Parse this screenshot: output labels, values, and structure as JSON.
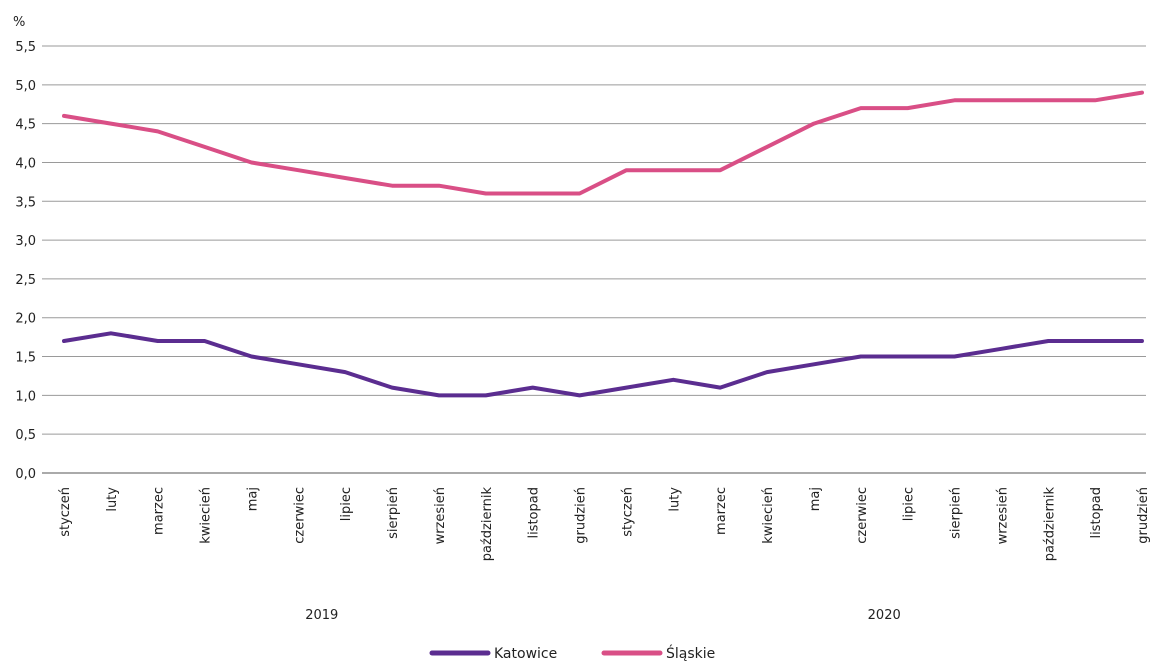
{
  "chart_data": {
    "type": "line",
    "ylabel": "%",
    "ylim": [
      0,
      5.5
    ],
    "yticks": [
      0.0,
      0.5,
      1.0,
      1.5,
      2.0,
      2.5,
      3.0,
      3.5,
      4.0,
      4.5,
      5.0,
      5.5
    ],
    "ytick_labels": [
      "0,0",
      "0,5",
      "1,0",
      "1,5",
      "2,0",
      "2,5",
      "3,0",
      "3,5",
      "4,0",
      "4,5",
      "5,0",
      "5,5"
    ],
    "categories": [
      "styczeń",
      "luty",
      "marzec",
      "kwiecień",
      "maj",
      "czerwiec",
      "lipiec",
      "sierpień",
      "wrzesień",
      "październik",
      "listopad",
      "grudzień",
      "styczeń",
      "luty",
      "marzec",
      "kwiecień",
      "maj",
      "czerwiec",
      "lipiec",
      "sierpień",
      "wrzesień",
      "październik",
      "listopad",
      "grudzień"
    ],
    "groups": [
      {
        "label": "2019",
        "start": 0,
        "end": 11
      },
      {
        "label": "2020",
        "start": 12,
        "end": 23
      }
    ],
    "grid": true,
    "legend_position": "bottom",
    "series": [
      {
        "name": "Katowice",
        "color": "#5b2d90",
        "values": [
          1.7,
          1.8,
          1.7,
          1.7,
          1.5,
          1.4,
          1.3,
          1.1,
          1.0,
          1.0,
          1.1,
          1.0,
          1.1,
          1.2,
          1.1,
          1.3,
          1.4,
          1.5,
          1.5,
          1.5,
          1.6,
          1.7,
          1.7,
          1.7
        ]
      },
      {
        "name": "Śląskie",
        "color": "#d94f86",
        "values": [
          4.6,
          4.5,
          4.4,
          4.2,
          4.0,
          3.9,
          3.8,
          3.7,
          3.7,
          3.6,
          3.6,
          3.6,
          3.9,
          3.9,
          3.9,
          4.2,
          4.5,
          4.7,
          4.7,
          4.8,
          4.8,
          4.8,
          4.8,
          4.9
        ]
      }
    ]
  }
}
